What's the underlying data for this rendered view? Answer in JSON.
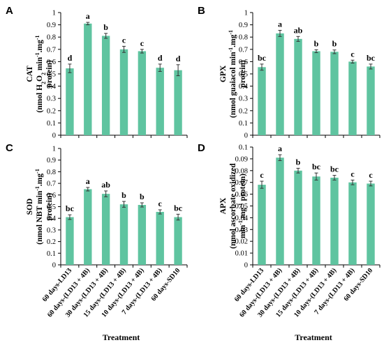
{
  "figure": {
    "categories": [
      "60 days-LD13",
      "60 days-(LD13 + 4B)",
      "30 days-(LD13 + 4B)",
      "15 days-(LD13 + 4B)",
      "10 days-(LD13 + 4B)",
      "7 days-(LD13 + 4B)",
      "60 days-SD10"
    ],
    "bar_color": "#5fc4a0"
  },
  "chart_data": [
    {
      "type": "bar",
      "panel": "A",
      "ylabel_lines": [
        "CAT",
        "(nmol H2O2 min-1.mg-1",
        "protein)"
      ],
      "xlabel": "",
      "ylim": [
        0,
        1
      ],
      "yticks": [
        "0",
        "0.1",
        "0.2",
        "0.3",
        "0.4",
        "0.5",
        "0.6",
        "0.7",
        "0.8",
        "0.9",
        "1"
      ],
      "categories": [
        "60 days-LD13",
        "60 days-(LD13 + 4B)",
        "30 days-(LD13 + 4B)",
        "15 days-(LD13 + 4B)",
        "10 days-(LD13 + 4B)",
        "7 days-(LD13 + 4B)",
        "60 days-SD10"
      ],
      "values": [
        0.545,
        0.91,
        0.81,
        0.7,
        0.685,
        0.55,
        0.53
      ],
      "errors": [
        0.035,
        0.01,
        0.02,
        0.025,
        0.015,
        0.03,
        0.045
      ],
      "significance": [
        "d",
        "a",
        "b",
        "c",
        "c",
        "d",
        "d"
      ],
      "show_category_labels": false
    },
    {
      "type": "bar",
      "panel": "B",
      "ylabel_lines": [
        "GPX",
        "(nmol guaiacol min-1.mg-1",
        "protein)"
      ],
      "xlabel": "",
      "ylim": [
        0,
        1
      ],
      "yticks": [
        "0",
        "0.1",
        "0.2",
        "0.3",
        "0.4",
        "0.5",
        "0.6",
        "0.7",
        "0.8",
        "0.9",
        "1"
      ],
      "categories": [
        "60 days-LD13",
        "60 days-(LD13 + 4B)",
        "30 days-(LD13 + 4B)",
        "15 days-(LD13 + 4B)",
        "10 days-(LD13 + 4B)",
        "7 days-(LD13 + 4B)",
        "60 days-SD10"
      ],
      "values": [
        0.555,
        0.83,
        0.785,
        0.685,
        0.68,
        0.6,
        0.56
      ],
      "errors": [
        0.025,
        0.025,
        0.02,
        0.012,
        0.015,
        0.012,
        0.02
      ],
      "significance": [
        "bc",
        "a",
        "ab",
        "b",
        "b",
        "c",
        "bc"
      ],
      "show_category_labels": false
    },
    {
      "type": "bar",
      "panel": "C",
      "ylabel_lines": [
        "SOD",
        "(nmol NBT min-1.mg-1",
        "protein)"
      ],
      "xlabel": "Treatment",
      "ylim": [
        0,
        1
      ],
      "yticks": [
        "0",
        "0.1",
        "0.2",
        "0.3",
        "0.4",
        "0.5",
        "0.6",
        "0.7",
        "0.8",
        "0.9",
        "1"
      ],
      "categories": [
        "60 days-LD13",
        "60 days-(LD13 + 4B)",
        "30 days-(LD13 + 4B)",
        "15 days-(LD13 + 4B)",
        "10 days-(LD13 + 4B)",
        "7 days-(LD13 + 4B)",
        "60 days-SD10"
      ],
      "values": [
        0.41,
        0.65,
        0.61,
        0.52,
        0.515,
        0.455,
        0.41
      ],
      "errors": [
        0.02,
        0.015,
        0.025,
        0.025,
        0.018,
        0.018,
        0.025
      ],
      "significance": [
        "bc",
        "a",
        "ab",
        "b",
        "b",
        "c",
        "bc"
      ],
      "show_category_labels": true
    },
    {
      "type": "bar",
      "panel": "D",
      "ylabel_lines": [
        "APX",
        "(nmol ascorbate oxidized",
        "min-1.mg-1 protein)"
      ],
      "xlabel": "Treatment",
      "ylim": [
        0,
        0.1
      ],
      "yticks": [
        "0",
        "0.01",
        "0.02",
        "0.03",
        "0.04",
        "0.05",
        "0.06",
        "0.07",
        "0.08",
        "0.09",
        "0.1"
      ],
      "categories": [
        "60 days-LD13",
        "60 days-(LD13 + 4B)",
        "30 days-(LD13 + 4B)",
        "15 days-(LD13 + 4B)",
        "10 days-(LD13 + 4B)",
        "7 days-(LD13 + 4B)",
        "60 days-SD10"
      ],
      "values": [
        0.068,
        0.091,
        0.08,
        0.075,
        0.074,
        0.07,
        0.069
      ],
      "errors": [
        0.003,
        0.0025,
        0.002,
        0.003,
        0.002,
        0.002,
        0.002
      ],
      "significance": [
        "c",
        "a",
        "b",
        "bc",
        "bc",
        "c",
        "c"
      ],
      "show_category_labels": true
    }
  ]
}
